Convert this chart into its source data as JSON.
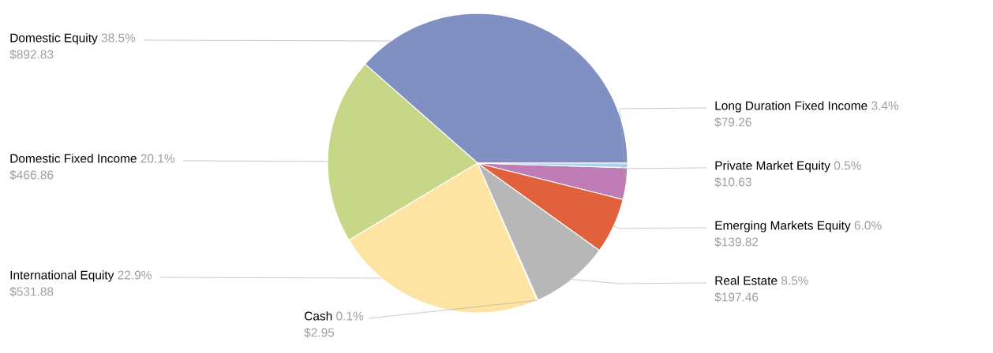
{
  "chart_data": {
    "type": "pie",
    "categories": [
      "Domestic Equity",
      "Domestic Fixed Income",
      "International Equity",
      "Cash",
      "Real Estate",
      "Emerging Markets Equity",
      "Long Duration Fixed Income",
      "Private Market Equity"
    ],
    "values": [
      38.5,
      20.1,
      22.9,
      0.1,
      8.5,
      6.0,
      3.4,
      0.5
    ],
    "value_labels": [
      "38.5%",
      "20.1%",
      "22.9%",
      "0.1%",
      "8.5%",
      "6.0%",
      "3.4%",
      "0.5%"
    ],
    "colors": [
      "#8090c2",
      "#c8d688",
      "#fde4a2",
      "#f3e9c8",
      "#b7b7b7",
      "#e2613d",
      "#c07cb4",
      "#a9d4ea"
    ],
    "annotations": [
      "$892.83",
      "$466.86",
      "$531.88",
      "$2.95",
      "$197.46",
      "$139.82",
      "$79.26",
      "$10.63"
    ]
  }
}
